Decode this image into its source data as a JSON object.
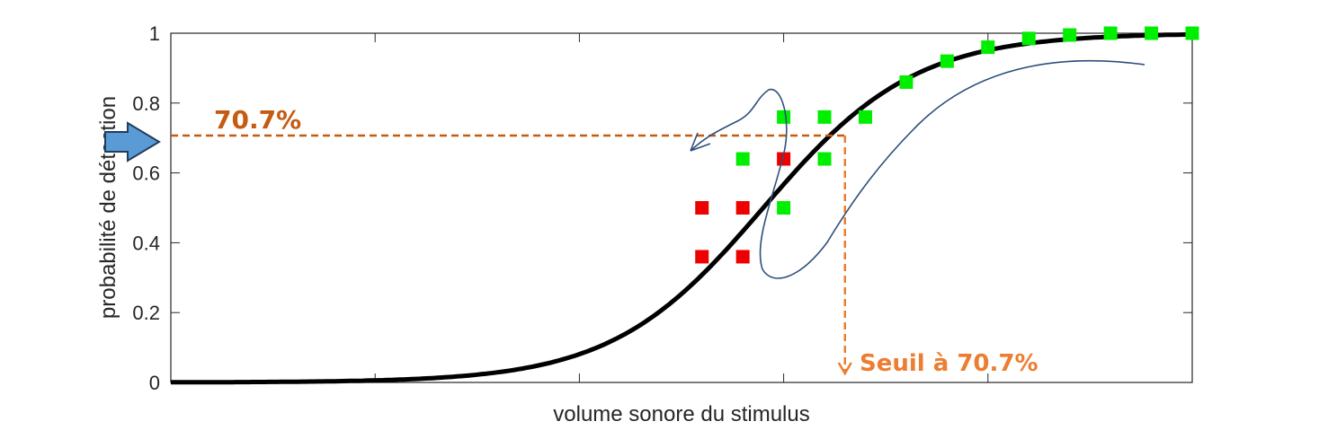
{
  "chart_data": {
    "type": "scatter",
    "title": "",
    "xlabel": "volume sonore du stimulus",
    "ylabel": "probabilité de détection",
    "ylim": [
      0,
      1
    ],
    "yticks": [
      "0",
      "0.2",
      "0.4",
      "0.6",
      "0.8",
      "1"
    ],
    "xticks_positions": [
      0,
      5,
      10,
      15,
      20,
      25
    ],
    "xlim": [
      0,
      25
    ],
    "grid": false,
    "curve": {
      "type": "sigmoid-fit",
      "color": "#000000",
      "midpoint": 14.5,
      "slope": 0.6
    },
    "series": [
      {
        "color": "#00ee00",
        "points": [
          [
            14,
            0.64
          ],
          [
            15,
            0.76
          ],
          [
            16,
            0.76
          ],
          [
            15,
            0.5
          ],
          [
            16,
            0.64
          ],
          [
            17,
            0.76
          ],
          [
            18,
            0.86
          ],
          [
            19,
            0.92
          ],
          [
            20,
            0.96
          ],
          [
            21,
            0.985
          ],
          [
            22,
            0.995
          ],
          [
            23,
            1.0
          ],
          [
            24,
            1.0
          ],
          [
            25,
            1.0
          ]
        ]
      },
      {
        "color": "#ee0000",
        "points": [
          [
            13,
            0.5
          ],
          [
            14,
            0.5
          ],
          [
            13,
            0.36
          ],
          [
            14,
            0.36
          ],
          [
            15,
            0.64
          ]
        ]
      }
    ],
    "annotations": {
      "threshold_label": "70.7%",
      "threshold_level": 0.707,
      "seuil_label": "Seuil à 70.7%",
      "seuil_x": 16.5,
      "annotation_color": "#c55a11",
      "line_color": "#ed7d31",
      "arrow_color": "#5b9bd5"
    }
  }
}
